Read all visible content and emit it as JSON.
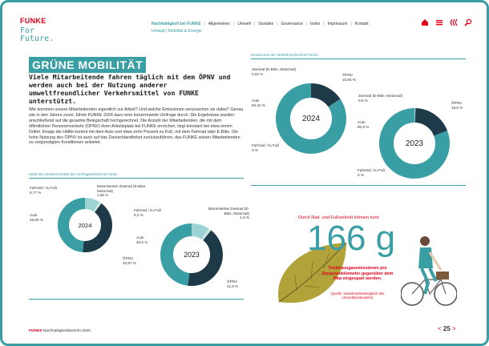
{
  "header": {
    "logo": "FUNKE",
    "tagline_line1": "For",
    "tagline_line2": "Future.",
    "nav": [
      "Nachhaltigkeit bei FUNKE",
      "Allgemeines",
      "Umwelt",
      "Soziales",
      "Governance",
      "Index",
      "Impressum",
      "Kontakt"
    ],
    "nav_active_index": 0,
    "breadcrumb": "Umwelt | Mobilität & Energie",
    "icons": [
      "home-icon",
      "menu-icon",
      "back-icon",
      "search-icon"
    ]
  },
  "page": {
    "title": "GRÜNE MOBILITÄT",
    "lead": "Viele Mitarbeitende fahren täglich mit dem ÖPNV und werden auch bei der Nutzung anderer umweltfreundlicher Verkehrsmittel von FUNKE unterstützt.",
    "body": "Wie kommen unsere Mitarbeitenden eigentlich zur Arbeit? Und welche Emissionen verursachen sie dabei? Genau wie in den Jahren zuvor, führte FUNKE 2024 dazu eine konzernweite Umfrage durch. Die Ergebnisse wurden anschließend auf die gesamte Belegschaft hochgerechnet. Die Anzahl der Mitarbeitenden, die mit dem öffentlichen Personenverkehr (ÖPNV) ihren Arbeitsplatz bei FUNKE erreichen, liegt konstant bei etwa einem Drittel. Knapp die Hälfte kommt mit dem Auto und etwa zehn Prozent zu Fuß, mit dem Fahrrad oder E-Bike. Die hohe Nutzung des ÖPNV ist auch auf das Deutschlandticket zurückzuführen, das FUNKE seinen Mitarbeitenden zu vergünstigten Konditionen anbietet."
  },
  "chart_data": [
    {
      "type": "pie",
      "title": "Wahl des Verkehrsmittels der Umfrageteilnehmer*innen",
      "year": "2024",
      "slices": [
        {
          "label": "Fahrrad / zu Fuß",
          "value": 8.77,
          "display": "8,77 %"
        },
        {
          "label": "Motorisiertes Zweirad (E-Bike, Motorrad)",
          "value": 1.56,
          "display": "1,56 %"
        },
        {
          "label": "ÖPNV",
          "value": 40.87,
          "display": "40,87 %"
        },
        {
          "label": "Auto",
          "value": 48.8,
          "display": "48,80 %"
        }
      ],
      "colors": [
        "#9ed3d3",
        "#c9e7e5",
        "#1e3a48",
        "#3a9ea5"
      ]
    },
    {
      "type": "pie",
      "title": "Wahl des Verkehrsmittels der Umfrageteilnehmer*innen",
      "year": "2023",
      "slices": [
        {
          "label": "Fahrrad / zu Fuß",
          "value": 9.2,
          "display": "9,2 %"
        },
        {
          "label": "Motorisiertes Zweirad (E-Bike, Motorrad)",
          "value": 1.6,
          "display": "1,6 %"
        },
        {
          "label": "ÖPNV",
          "value": 41.5,
          "display": "41,5 %"
        },
        {
          "label": "Auto",
          "value": 48.5,
          "display": "48,5 %"
        }
      ],
      "colors": [
        "#9ed3d3",
        "#c9e7e5",
        "#1e3a48",
        "#3a9ea5"
      ]
    },
    {
      "type": "pie",
      "title": "Emissionen der Verkehrsteilnehmer*innen",
      "year": "2024",
      "slices": [
        {
          "label": "Zweirad (E-Bike, Motorrad)",
          "value": 0.02,
          "display": "0,02 %"
        },
        {
          "label": "ÖPNV",
          "value": 15.56,
          "display": "15,56 %"
        },
        {
          "label": "Auto",
          "value": 84.42,
          "display": "84,42 %"
        },
        {
          "label": "Fahrrad / zu Fuß",
          "value": 0,
          "display": "0 %"
        }
      ],
      "colors": [
        "#9ed3d3",
        "#1e3a48",
        "#3a9ea5",
        "#c9e7e5"
      ]
    },
    {
      "type": "pie",
      "title": "Emissionen der Verkehrsteilnehmer*innen",
      "year": "2023",
      "slices": [
        {
          "label": "Zweirad (E-Bike, Motorrad)",
          "value": 0.5,
          "display": "0,5 %"
        },
        {
          "label": "ÖPNV",
          "value": 18.6,
          "display": "18,6 %"
        },
        {
          "label": "Auto",
          "value": 80.9,
          "display": "80,9 %"
        },
        {
          "label": "Fahrrad / zu Fuß",
          "value": 0,
          "display": "0 %"
        }
      ],
      "colors": [
        "#9ed3d3",
        "#1e3a48",
        "#3a9ea5",
        "#c9e7e5"
      ]
    }
  ],
  "highlight": {
    "intro": "Durch Rad- und Fußverkehr können rund",
    "value": "166 g",
    "description": "Treibhausgasemissionen pro Personenkilometer gegenüber dem Pkw eingespart werden.",
    "source": "(Quelle: Verkehrsmittelvergleich des Umweltbundesamts)",
    "colors": {
      "accent": "#e1001a",
      "teal": "#3a9ea5",
      "leaf": "#b2a23a"
    }
  },
  "footer": {
    "brand": "FUNKE",
    "report": "Nachhaltigkeitsbericht 2025",
    "page_number": "25"
  }
}
